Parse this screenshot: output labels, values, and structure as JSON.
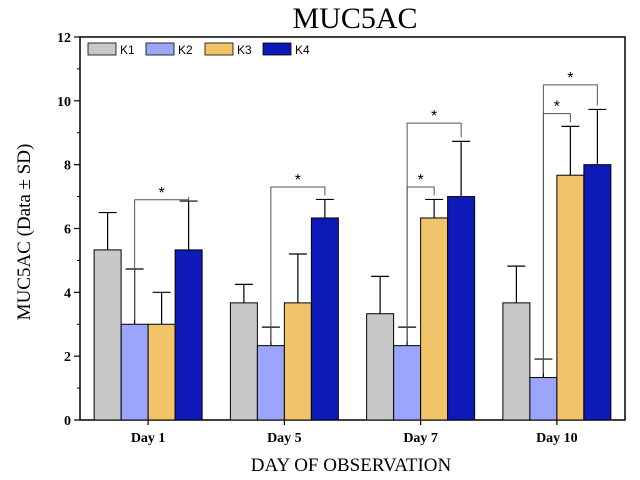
{
  "chart_data": {
    "type": "bar",
    "title": "MUC5AC",
    "xlabel": "DAY OF OBSERVATION",
    "ylabel": "MUC5AC (Data ± SD)",
    "ylim": [
      0,
      12
    ],
    "yticks": [
      "0",
      "2",
      "4",
      "6",
      "8",
      "10",
      "12"
    ],
    "categories": [
      "Day 1",
      "Day 5",
      "Day 7",
      "Day 10"
    ],
    "legend_position": "top-left",
    "grid": false,
    "series": [
      {
        "name": "K1",
        "color": "#c8c8c8",
        "values": [
          5.33,
          3.67,
          3.33,
          3.67
        ],
        "sd": [
          1.17,
          0.58,
          1.17,
          1.15
        ]
      },
      {
        "name": "K2",
        "color": "#9aa5fb",
        "values": [
          3.0,
          2.33,
          2.33,
          1.33
        ],
        "sd": [
          1.73,
          0.58,
          0.58,
          0.58
        ]
      },
      {
        "name": "K3",
        "color": "#f2c46a",
        "values": [
          3.0,
          3.67,
          6.33,
          7.67
        ],
        "sd": [
          1.0,
          1.53,
          0.58,
          1.53
        ]
      },
      {
        "name": "K4",
        "color": "#0d1ab8",
        "values": [
          5.33,
          6.33,
          7.0,
          8.0
        ],
        "sd": [
          1.53,
          0.58,
          1.73,
          1.73
        ]
      }
    ],
    "significance": [
      {
        "category": 0,
        "from": 1,
        "to": 3,
        "level": 6.9,
        "label": "*"
      },
      {
        "category": 1,
        "from": 1,
        "to": 3,
        "level": 7.3,
        "label": "*"
      },
      {
        "category": 2,
        "from": 1,
        "to": 2,
        "level": 7.3,
        "label": "*"
      },
      {
        "category": 2,
        "from": 1,
        "to": 3,
        "level": 9.3,
        "label": "*"
      },
      {
        "category": 3,
        "from": 1,
        "to": 2,
        "level": 9.6,
        "label": "*"
      },
      {
        "category": 3,
        "from": 1,
        "to": 3,
        "level": 10.5,
        "label": "*"
      }
    ]
  }
}
